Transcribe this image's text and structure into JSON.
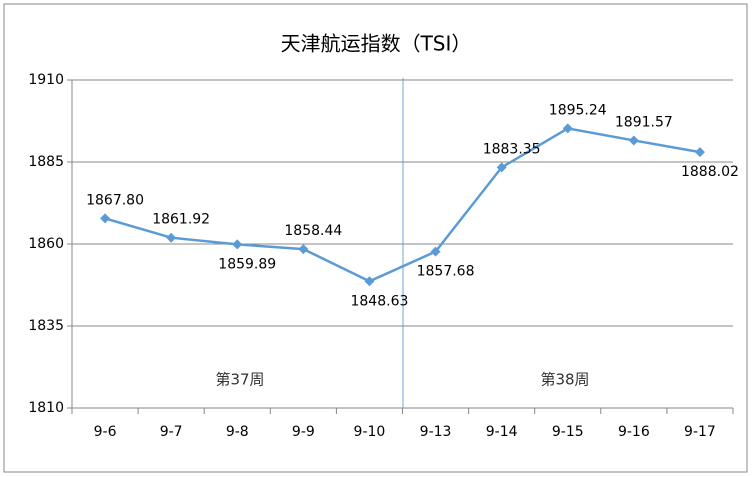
{
  "chart_data": {
    "type": "line",
    "title": "天津航运指数（TSI）",
    "categories": [
      "9-6",
      "9-7",
      "9-8",
      "9-9",
      "9-10",
      "9-13",
      "9-14",
      "9-15",
      "9-16",
      "9-17"
    ],
    "series": [
      {
        "name": "TSI",
        "color": "#5b9bd5",
        "values": [
          1867.8,
          1861.92,
          1859.89,
          1858.44,
          1848.63,
          1857.68,
          1883.35,
          1895.24,
          1891.57,
          1888.02
        ],
        "value_labels": [
          "1867.80",
          "1861.92",
          "1859.89",
          "1858.44",
          "1848.63",
          "1857.68",
          "1883.35",
          "1895.24",
          "1891.57",
          "1888.02"
        ]
      }
    ],
    "ylim": [
      1810,
      1910
    ],
    "yticks": [
      1810,
      1835,
      1860,
      1885,
      1910
    ],
    "grid": true,
    "annotations": [
      "第37周",
      "第38周"
    ]
  }
}
